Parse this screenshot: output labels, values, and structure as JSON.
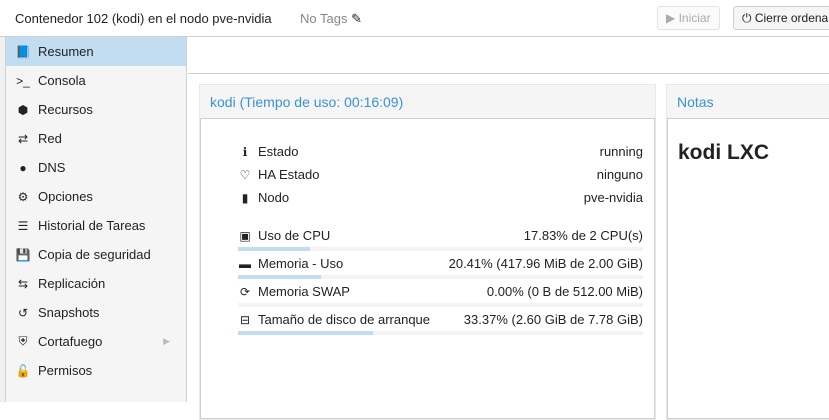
{
  "header": {
    "title": "Contenedor 102 (kodi) en el nodo pve-nvidia",
    "tags": "No Tags",
    "start_label": "Iniciar",
    "shutdown_label": "Cierre ordena"
  },
  "nav": [
    {
      "label": "Resumen",
      "icon": "book-icon",
      "glyph": "📘",
      "active": true
    },
    {
      "label": "Consola",
      "icon": "terminal-icon",
      "glyph": ">_"
    },
    {
      "label": "Recursos",
      "icon": "cube-icon",
      "glyph": "⬢"
    },
    {
      "label": "Red",
      "icon": "exchange-icon",
      "glyph": "⇄"
    },
    {
      "label": "DNS",
      "icon": "globe-icon",
      "glyph": "●"
    },
    {
      "label": "Opciones",
      "icon": "gear-icon",
      "glyph": "⚙"
    },
    {
      "label": "Historial de Tareas",
      "icon": "list-icon",
      "glyph": "☰"
    },
    {
      "label": "Copia de seguridad",
      "icon": "floppy-icon",
      "glyph": "💾"
    },
    {
      "label": "Replicación",
      "icon": "retweet-icon",
      "glyph": "⇆"
    },
    {
      "label": "Snapshots",
      "icon": "history-icon",
      "glyph": "↺"
    },
    {
      "label": "Cortafuego",
      "icon": "shield-icon",
      "glyph": "⛨",
      "submenu": true
    },
    {
      "label": "Permisos",
      "icon": "unlock-icon",
      "glyph": "🔓"
    }
  ],
  "status": {
    "title": "kodi (Tiempo de uso: 00:16:09)",
    "info": [
      {
        "label": "Estado",
        "value": "running",
        "icon": "info-icon",
        "glyph": "ℹ"
      },
      {
        "label": "HA Estado",
        "value": "ninguno",
        "icon": "heartbeat-icon",
        "glyph": "♡"
      },
      {
        "label": "Nodo",
        "value": "pve-nvidia",
        "icon": "server-icon",
        "glyph": "▮"
      }
    ],
    "usage": [
      {
        "label": "Uso de CPU",
        "value": "17.83% de 2 CPU(s)",
        "percent": 17.83,
        "icon": "cpu-icon",
        "glyph": "▣"
      },
      {
        "label": "Memoria - Uso",
        "value": "20.41% (417.96 MiB de 2.00 GiB)",
        "percent": 20.41,
        "icon": "memory-icon",
        "glyph": "▬"
      },
      {
        "label": "Memoria SWAP",
        "value": "0.00% (0 B de 512.00 MiB)",
        "percent": 0,
        "icon": "refresh-icon",
        "glyph": "⟳"
      },
      {
        "label": "Tamaño de disco de arranque",
        "value": "33.37% (2.60 GiB de 7.78 GiB)",
        "percent": 33.37,
        "icon": "hdd-icon",
        "glyph": "⊟"
      }
    ]
  },
  "notes": {
    "title": "Notas",
    "content": "kodi LXC"
  },
  "colors": {
    "accent": "#3892d4",
    "selected": "#c2ddf2"
  }
}
